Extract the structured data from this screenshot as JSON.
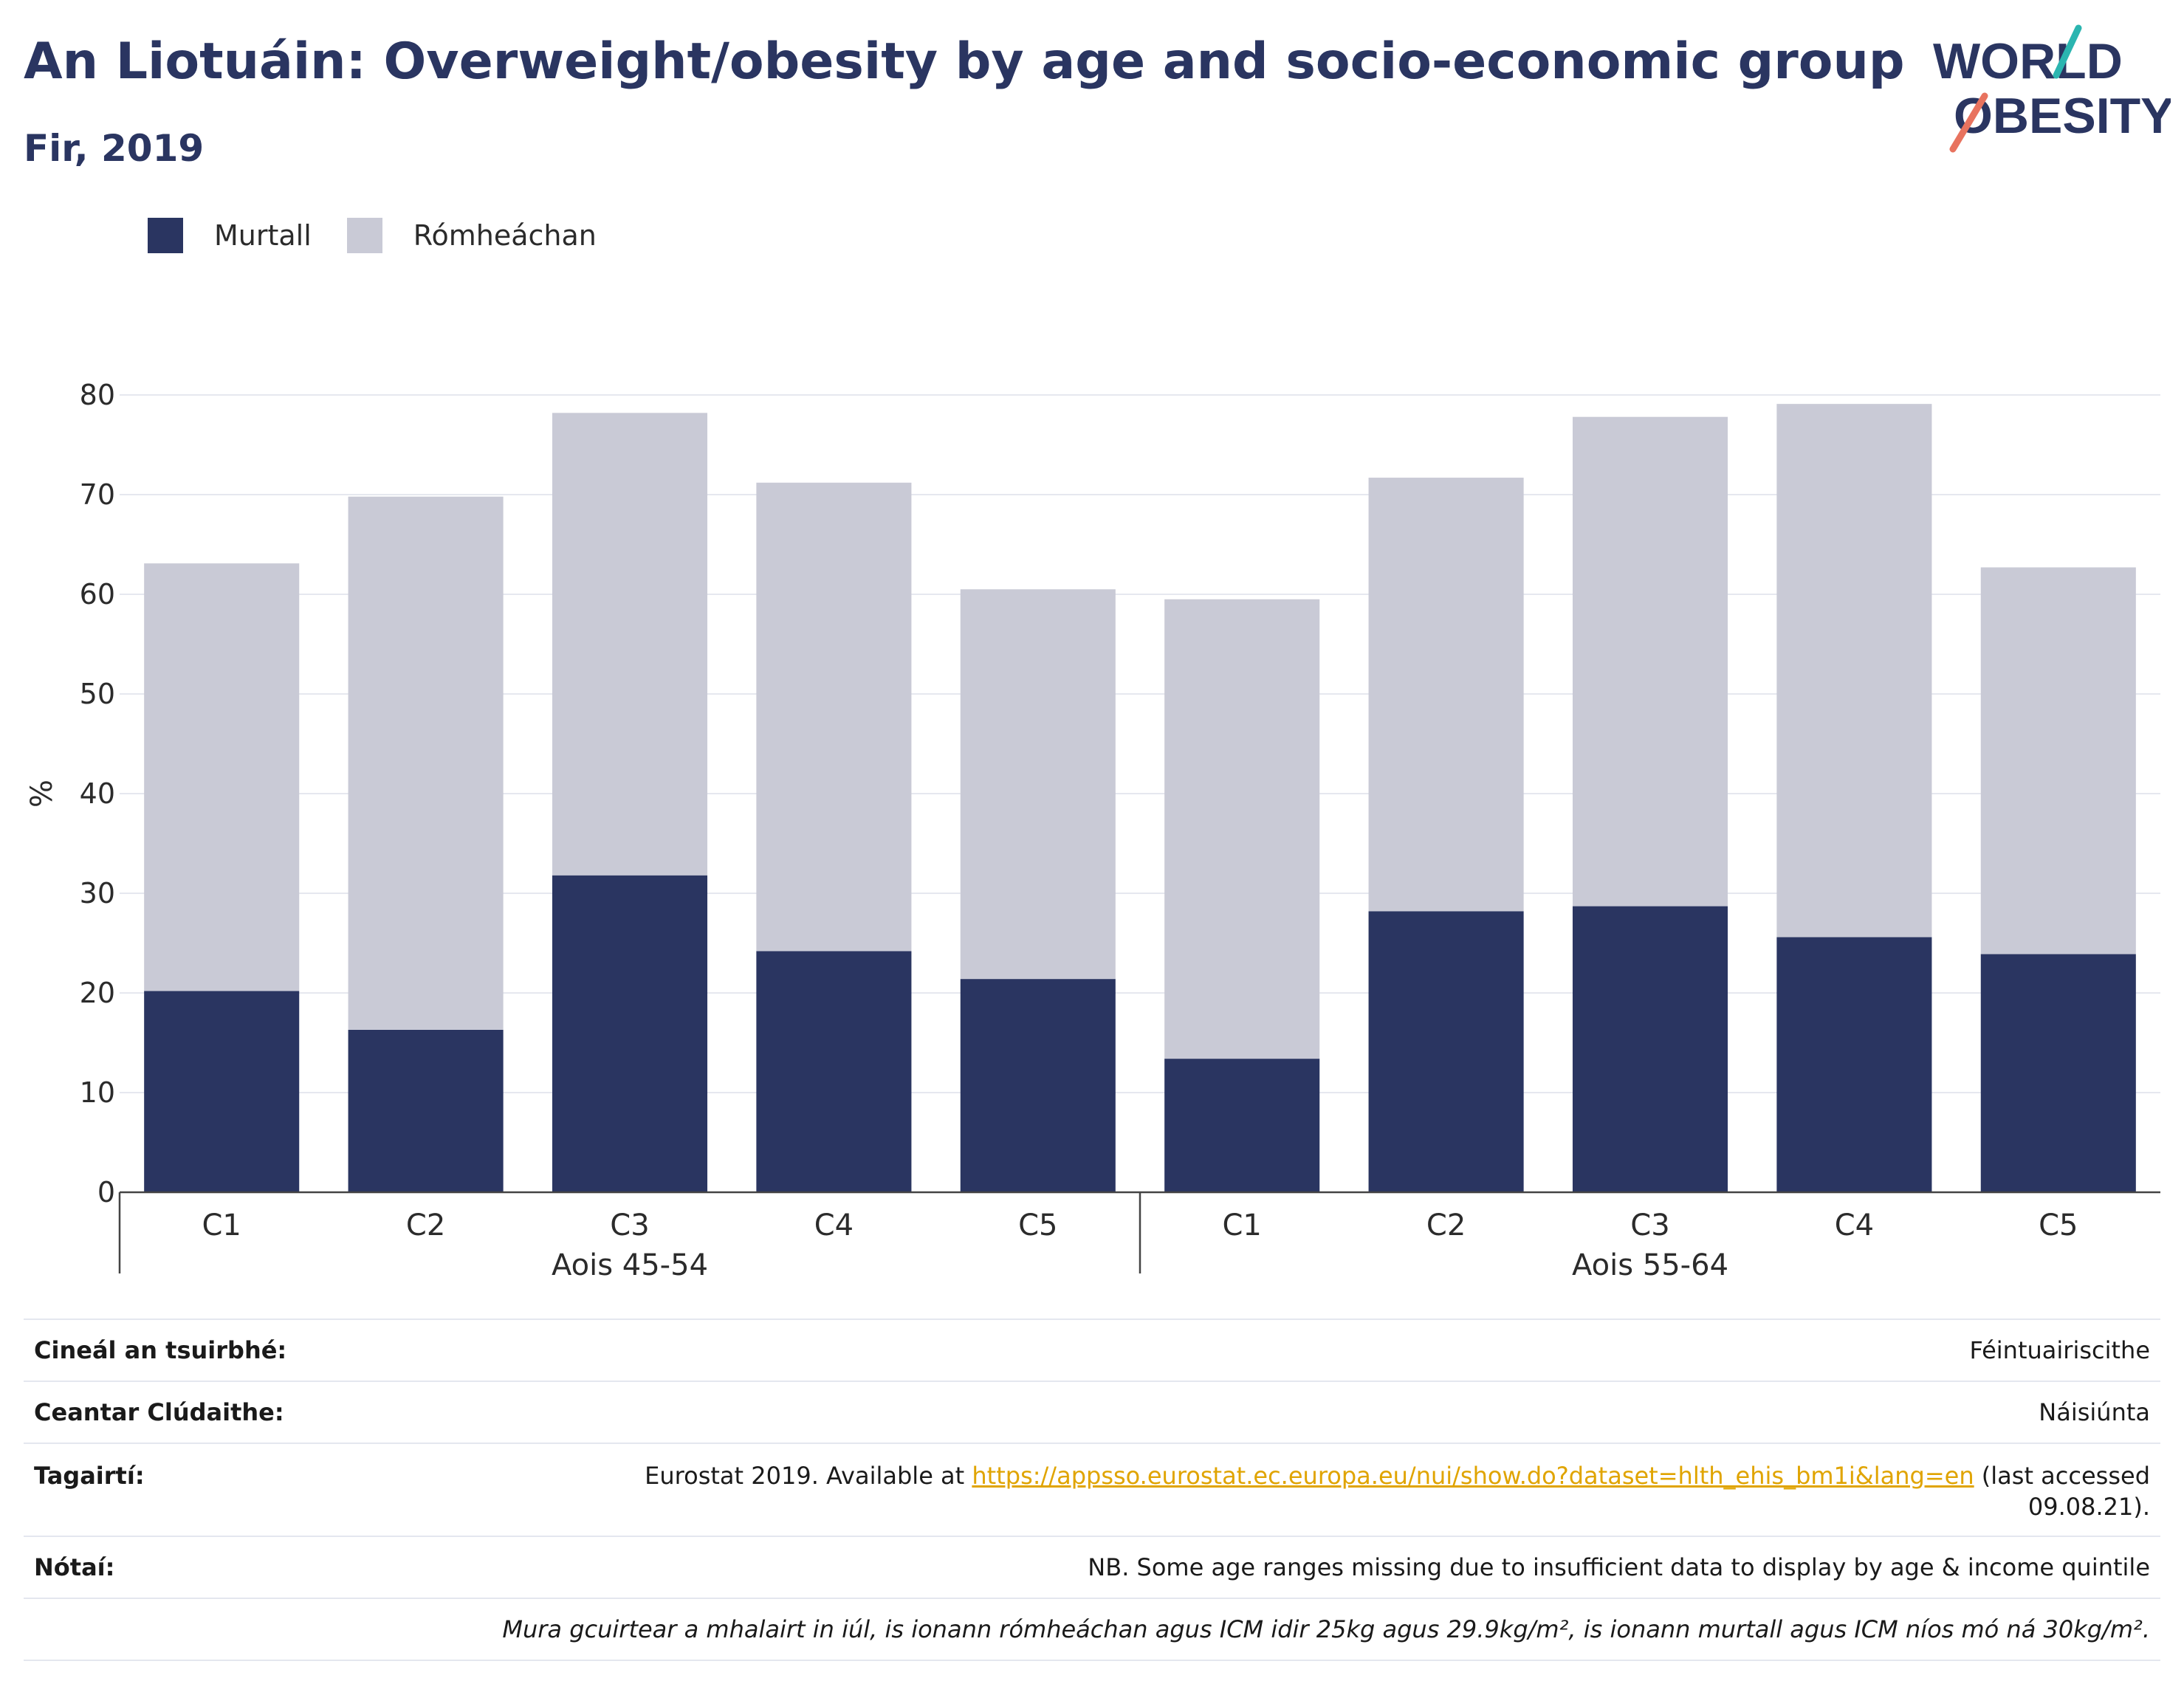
{
  "header": {
    "title": "An Liotuáin: Overweight/obesity by age and socio-economic group",
    "subtitle": "Fir, 2019"
  },
  "logo": {
    "line1": "WORLD",
    "line2": "OBESITY",
    "icon": "world-obesity-logo",
    "accent_teal": "#2bb5b0",
    "accent_coral": "#e8735f"
  },
  "legend": [
    {
      "label": "Murtall",
      "color": "#2a3561"
    },
    {
      "label": "Rómheáchan",
      "color": "#c9cad6"
    }
  ],
  "chart_data": {
    "type": "bar",
    "stacked": true,
    "ylabel": "%",
    "ylim": [
      0,
      80
    ],
    "yticks": [
      0,
      10,
      20,
      30,
      40,
      50,
      60,
      70,
      80
    ],
    "grid": true,
    "legend_position": "top-left",
    "groups": [
      {
        "label": "Aois 45-54",
        "categories": [
          "C1",
          "C2",
          "C3",
          "C4",
          "C5"
        ]
      },
      {
        "label": "Aois 55-64",
        "categories": [
          "C1",
          "C2",
          "C3",
          "C4",
          "C5"
        ]
      }
    ],
    "series": [
      {
        "name": "Murtall",
        "color": "#2a3561",
        "values": [
          20.2,
          16.3,
          31.8,
          24.2,
          21.4,
          13.4,
          28.2,
          28.7,
          25.6,
          23.9
        ]
      },
      {
        "name": "Rómheáchan",
        "color": "#c9cad6",
        "values": [
          42.9,
          53.5,
          46.4,
          47.0,
          39.1,
          46.1,
          43.5,
          49.1,
          53.5,
          38.8
        ]
      }
    ]
  },
  "meta": {
    "survey_label": "Cineál an tsuirbhé:",
    "survey_value": "Féintuairiscithe",
    "coverage_label": "Ceantar Clúdaithe:",
    "coverage_value": "Náisiúnta",
    "refs_label": "Tagairtí:",
    "refs_pre": "Eurostat 2019. Available at ",
    "refs_link": "https://appsso.eurostat.ec.europa.eu/nui/show.do?dataset=hlth_ehis_bm1i&lang=en",
    "refs_post": " (last accessed",
    "refs_date": "09.08.21).",
    "notes_label": "Nótaí:",
    "notes_value": "NB. Some age ranges missing due to insufficient data to display by age & income quintile",
    "definition": "Mura gcuirtear a mhalairt in iúl, is ionann rómheáchan agus ICM idir 25kg agus 29.9kg/m², is ionann murtall agus ICM níos mó ná 30kg/m²."
  }
}
